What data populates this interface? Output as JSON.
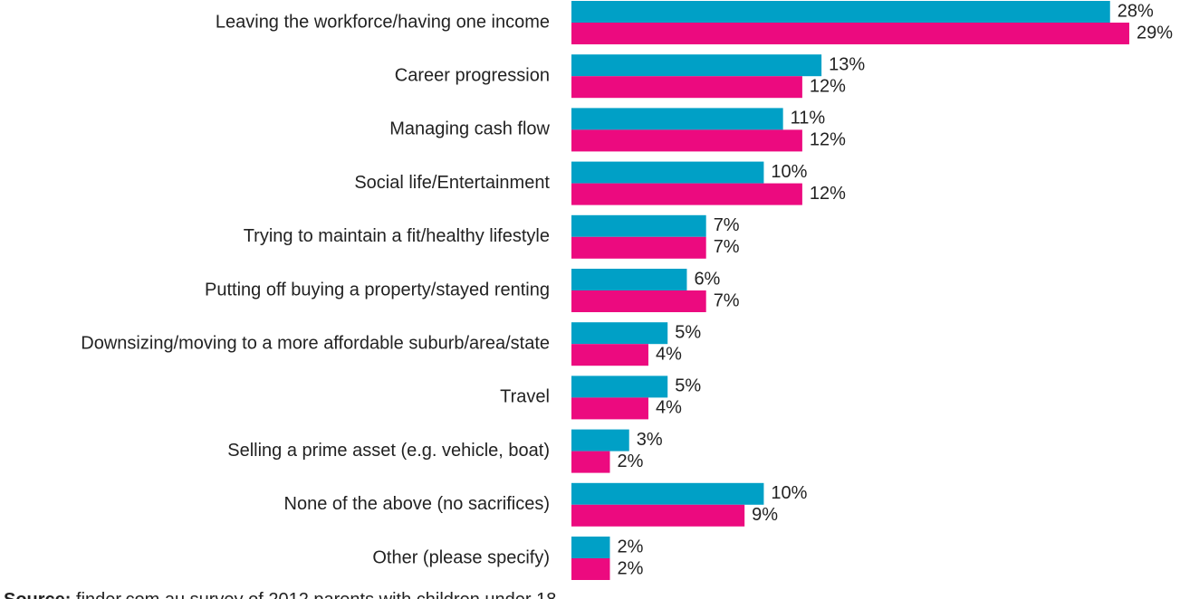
{
  "chart_data": {
    "type": "bar",
    "orientation": "horizontal",
    "categories": [
      "Leaving the workforce/having one income",
      "Career progression",
      "Managing cash flow",
      "Social life/Entertainment",
      "Trying to maintain a fit/healthy lifestyle",
      "Putting off buying a property/stayed renting",
      "Downsizing/moving to a more affordable suburb/area/state",
      "Travel",
      "Selling a prime asset (e.g. vehicle, boat)",
      "None of the above (no sacrifices)",
      "Other (please specify)"
    ],
    "series": [
      {
        "color": "#00a0c6",
        "values": [
          28,
          13,
          11,
          10,
          7,
          6,
          5,
          5,
          3,
          10,
          2
        ],
        "value_labels": [
          "28%",
          "13%",
          "11%",
          "10%",
          "7%",
          "6%",
          "5%",
          "5%",
          "3%",
          "10%",
          "2%"
        ]
      },
      {
        "color": "#ec0a7f",
        "values": [
          29,
          12,
          12,
          12,
          7,
          7,
          4,
          4,
          2,
          9,
          2
        ],
        "value_labels": [
          "29%",
          "12%",
          "12%",
          "12%",
          "7%",
          "7%",
          "4%",
          "4%",
          "2%",
          "9%",
          "2%"
        ]
      }
    ],
    "source_label": "Source:",
    "source_text": " finder.com.au survey of 2012 parents with children under 18"
  }
}
